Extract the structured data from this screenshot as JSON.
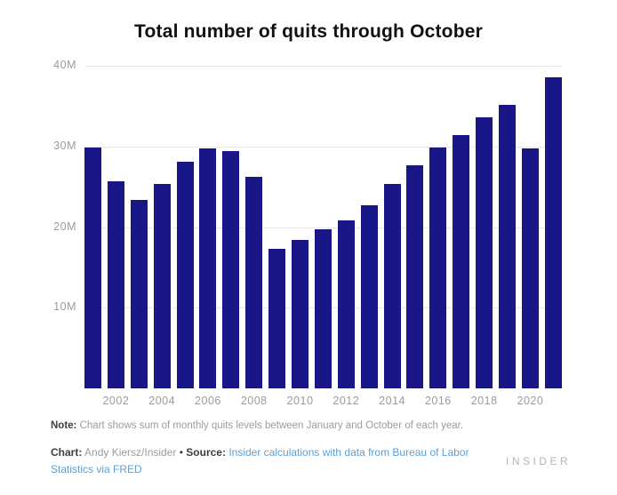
{
  "title": "Total number of quits through October",
  "chart_data": {
    "type": "bar",
    "categories": [
      "2001",
      "2002",
      "2003",
      "2004",
      "2005",
      "2006",
      "2007",
      "2008",
      "2009",
      "2010",
      "2011",
      "2012",
      "2013",
      "2014",
      "2015",
      "2016",
      "2017",
      "2018",
      "2019",
      "2020",
      "2021"
    ],
    "values": [
      29.9,
      25.7,
      23.4,
      25.4,
      28.1,
      29.7,
      29.4,
      26.2,
      17.3,
      18.4,
      19.7,
      20.8,
      22.7,
      25.4,
      27.7,
      29.9,
      31.4,
      33.6,
      35.2,
      29.8,
      38.6
    ],
    "title": "Total number of quits through October",
    "xlabel": "",
    "ylabel": "",
    "ylim": [
      0,
      40
    ],
    "yticks": [
      {
        "label": "40M",
        "value": 40
      },
      {
        "label": "30M",
        "value": 30
      },
      {
        "label": "20M",
        "value": 20
      },
      {
        "label": "10M",
        "value": 10
      }
    ],
    "xtick_labels": [
      "2002",
      "2004",
      "2006",
      "2008",
      "2010",
      "2012",
      "2014",
      "2016",
      "2018",
      "2020"
    ],
    "grid": true,
    "legend": false
  },
  "footer": {
    "note_label": "Note:",
    "note_text": "Chart shows sum of monthly quits levels between January and October of each year.",
    "chart_label": "Chart:",
    "chart_credit": "Andy Kiersz/Insider",
    "separator": "•",
    "source_label": "Source:",
    "source_link": "Insider calculations with data from Bureau of Labor Statistics via FRED",
    "logo": "INSIDER"
  },
  "colors": {
    "bar": "#191688",
    "grid": "#e7e7e7",
    "tick_label": "#9b9b9b",
    "title": "#111111",
    "note_bold": "#3d3d3d",
    "link": "#5b9fd6",
    "logo": "#b5b5b5"
  }
}
